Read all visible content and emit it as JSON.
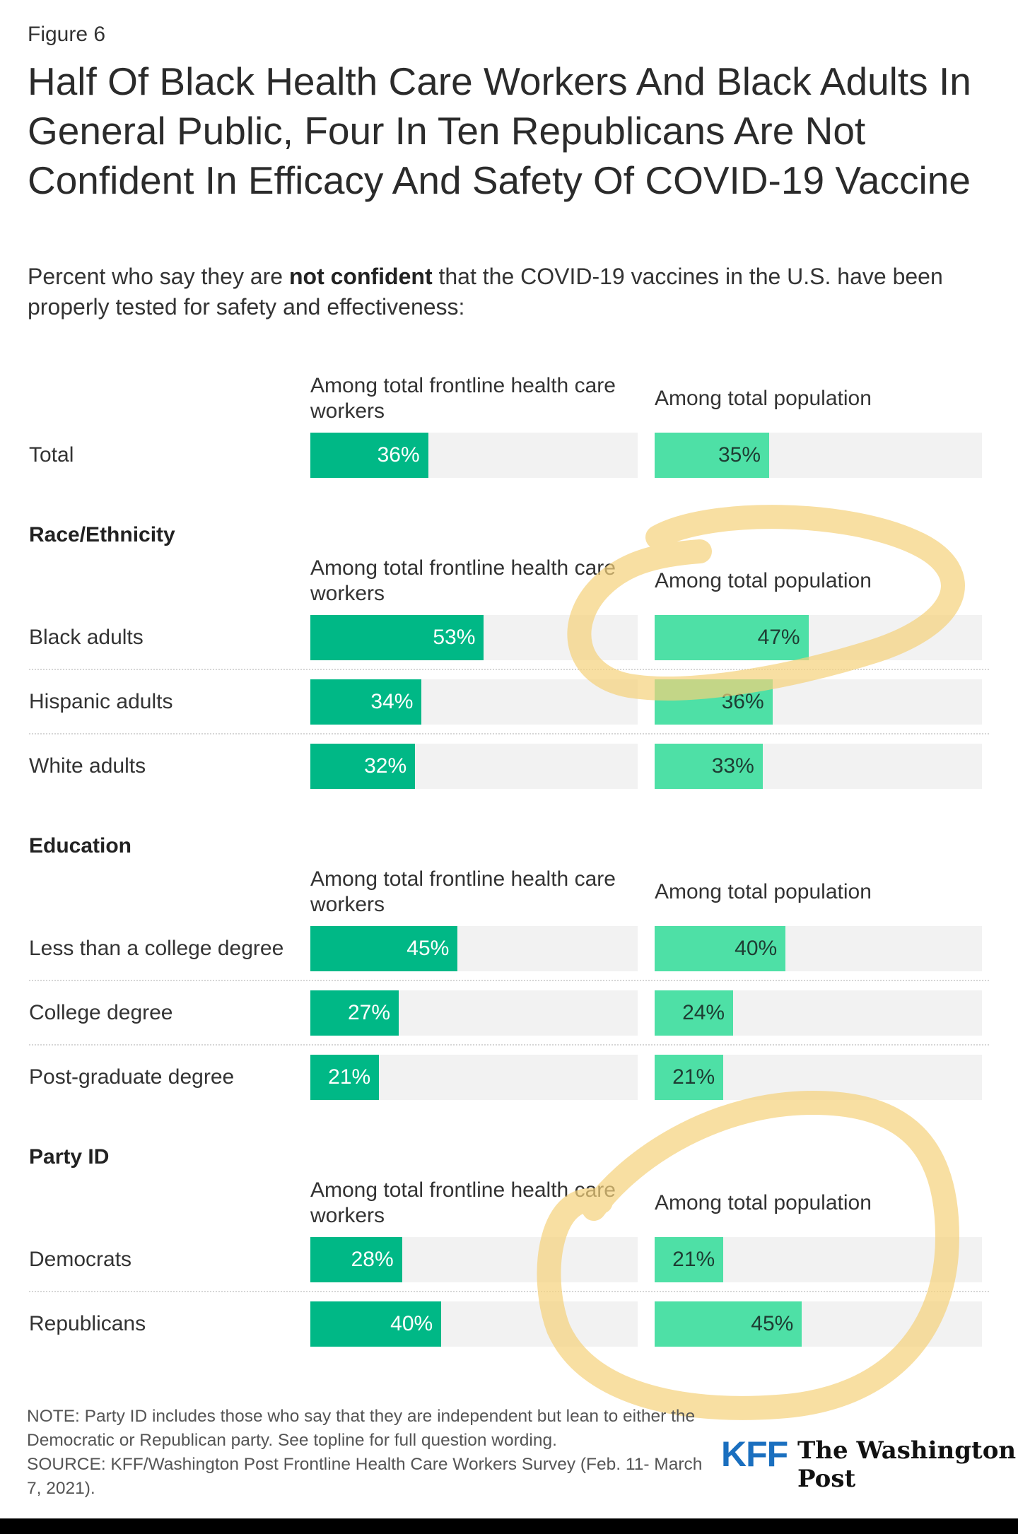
{
  "figure_label": "Figure 6",
  "title": "Half Of Black Health Care Workers And Black Adults In General Public, Four In Ten Republicans Are Not Confident In Efficacy And Safety Of COVID-19 Vaccine",
  "subtitle": {
    "prefix": "Percent who say they are ",
    "emphasis": "not confident",
    "suffix": " that the COVID-19 vaccines in the U.S. have been properly tested for safety and effectiveness:"
  },
  "colors": {
    "hcw_bar": "#00b886",
    "pop_bar": "#4ee0a6",
    "track": "#f2f2f2",
    "highlight": "#f5d27a"
  },
  "chart_data": {
    "type": "bar",
    "orientation": "horizontal",
    "unit": "%",
    "xlim": [
      0,
      100
    ],
    "columns": [
      "Among total frontline health care workers",
      "Among total population"
    ],
    "groups": [
      {
        "heading": "",
        "rows": [
          {
            "label": "Total",
            "values": [
              36,
              35
            ]
          }
        ]
      },
      {
        "heading": "Race/Ethnicity",
        "rows": [
          {
            "label": "Black adults",
            "values": [
              53,
              47
            ]
          },
          {
            "label": "Hispanic adults",
            "values": [
              34,
              36
            ]
          },
          {
            "label": "White adults",
            "values": [
              32,
              33
            ]
          }
        ]
      },
      {
        "heading": "Education",
        "rows": [
          {
            "label": "Less than a college degree",
            "values": [
              45,
              40
            ]
          },
          {
            "label": "College degree",
            "values": [
              27,
              24
            ]
          },
          {
            "label": "Post-graduate degree",
            "values": [
              21,
              21
            ]
          }
        ]
      },
      {
        "heading": "Party ID",
        "rows": [
          {
            "label": "Democrats",
            "values": [
              28,
              21
            ]
          },
          {
            "label": "Republicans",
            "values": [
              40,
              45
            ]
          }
        ]
      }
    ]
  },
  "note": "NOTE: Party ID includes those who say that they are independent but lean to either the Democratic or Republican party. See topline for full question wording.",
  "source": "SOURCE: KFF/Washington Post Frontline Health Care Workers Survey (Feb. 11- March 7, 2021).",
  "logos": {
    "kff": "KFF",
    "wapo": "The Washington Post"
  }
}
